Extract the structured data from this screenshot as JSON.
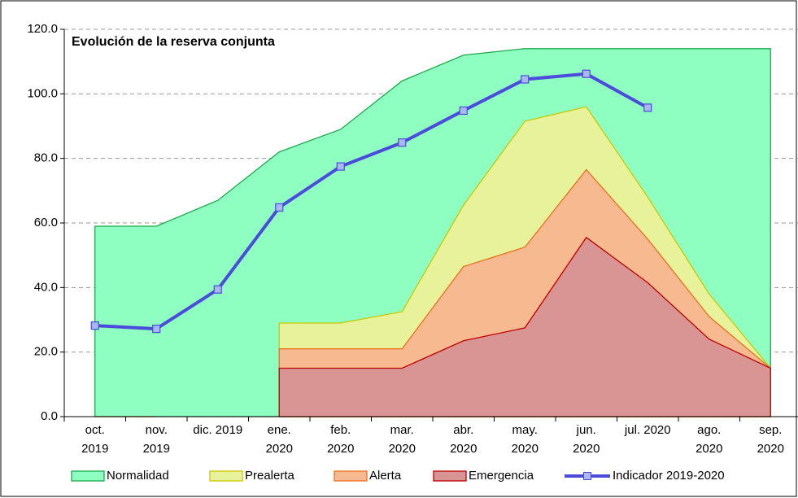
{
  "chart_data": {
    "type": "area",
    "title": "Evolución de la reserva conjunta",
    "categories": [
      "oct.\n2019",
      "nov.\n2019",
      "dic. 2019",
      "ene.\n2020",
      "feb.\n2020",
      "mar.\n2020",
      "abr.\n2020",
      "may.\n2020",
      "jun.\n2020",
      "jul. 2020",
      "ago.\n2020",
      "sep.\n2020"
    ],
    "series": [
      {
        "name": "Normalidad",
        "color": "#8effc0",
        "stroke": "#1ea84e",
        "values": [
          59,
          59,
          67,
          82,
          89,
          104,
          112,
          114,
          114,
          114,
          114,
          114
        ]
      },
      {
        "name": "Prealerta",
        "color": "#e8f29a",
        "stroke": "#c8c800",
        "values": [
          null,
          null,
          null,
          29,
          29,
          32.5,
          65.5,
          91.5,
          96,
          68,
          38,
          15
        ]
      },
      {
        "name": "Alerta",
        "color": "#f7b98f",
        "stroke": "#ec7020",
        "values": [
          0,
          0,
          null,
          21,
          21,
          21,
          46.5,
          52.5,
          76.5,
          55,
          31,
          15
        ]
      },
      {
        "name": "Emergencia",
        "color": "#d99494",
        "stroke": "#c00000",
        "values": [
          null,
          null,
          null,
          15,
          15,
          15,
          23.5,
          27.5,
          55.5,
          41.5,
          24,
          15
        ]
      },
      {
        "name": "Indicador 2019-2020",
        "type": "line",
        "color": "#4b4bdc",
        "marker_color": "#a8b8f0",
        "values": [
          28.2,
          27.2,
          39.4,
          64.8,
          77.5,
          84.9,
          94.8,
          104.5,
          106.2,
          95.7,
          null,
          null
        ]
      }
    ],
    "ylim": [
      0,
      120
    ],
    "yticks": [
      {
        "value": 0,
        "label": "0.0"
      },
      {
        "value": 20,
        "label": "20.0"
      },
      {
        "value": 40,
        "label": "40.0"
      },
      {
        "value": 60,
        "label": "60.0"
      },
      {
        "value": 80,
        "label": "80.0"
      },
      {
        "value": 100,
        "label": "100.0"
      },
      {
        "value": 120,
        "label": "120.0"
      }
    ],
    "grid": true
  }
}
